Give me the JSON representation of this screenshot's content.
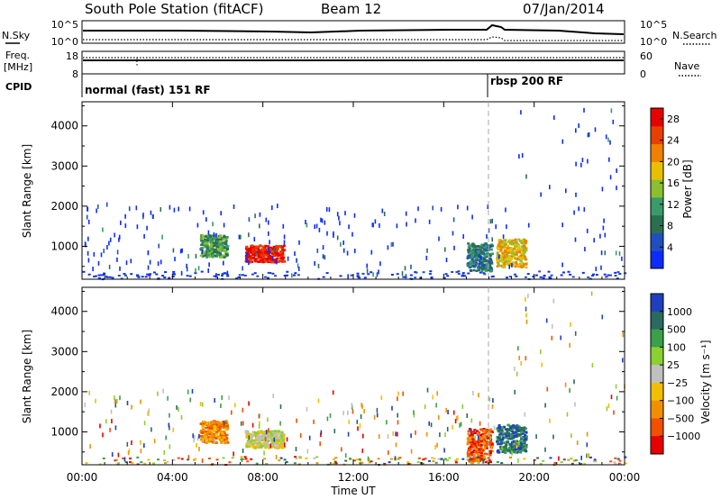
{
  "header": {
    "station": "South Pole Station (fitACF)",
    "beam": "Beam 12",
    "date": "07/Jan/2014"
  },
  "top_panels": {
    "nsky_label": "N.Sky",
    "nsky_ticks": [
      "10^5",
      "10^0"
    ],
    "nsearch_label": "N.Search",
    "freq_label_1": "Freq.",
    "freq_label_2": "[MHz]",
    "freq_ticks": [
      "18",
      "8"
    ],
    "nave_label": "Nave",
    "nave_ticks": [
      "60",
      "0"
    ],
    "cpid_label": "CPID",
    "cpid_segments": [
      {
        "start_hour": 0,
        "label": "normal (fast) 151 RF"
      },
      {
        "start_hour": 18,
        "label": "rbsp 200 RF"
      }
    ]
  },
  "chart_data": [
    {
      "type": "heatmap",
      "id": "power",
      "xlabel": "Time UT",
      "ylabel": "Slant Range [km]",
      "xlim": [
        0,
        24
      ],
      "ylim": [
        180,
        4600
      ],
      "x_ticks": [
        "00:00",
        "04:00",
        "08:00",
        "12:00",
        "16:00",
        "20:00",
        "00:00"
      ],
      "y_ticks": [
        1000,
        2000,
        3000,
        4000
      ],
      "colorbar": {
        "label": "Power [dB]",
        "ticks": [
          4,
          8,
          12,
          16,
          20,
          24,
          28
        ],
        "range": [
          0,
          30
        ],
        "colors": [
          "#0d2bff",
          "#1f4fbf",
          "#2a7050",
          "#3a9a6a",
          "#8ac030",
          "#e8c000",
          "#f08000",
          "#e84000",
          "#e80000"
        ]
      },
      "features": [
        {
          "t0": 5.2,
          "t1": 6.4,
          "r0": 750,
          "r1": 1300,
          "level": 3
        },
        {
          "t0": 7.2,
          "t1": 8.9,
          "r0": 620,
          "r1": 1050,
          "level": 8
        },
        {
          "t0": 17.0,
          "t1": 18.1,
          "r0": 400,
          "r1": 1100,
          "level": 2
        },
        {
          "t0": 18.3,
          "t1": 19.6,
          "r0": 500,
          "r1": 1200,
          "level": 5
        }
      ]
    },
    {
      "type": "heatmap",
      "id": "velocity",
      "xlabel": "Time UT",
      "ylabel": "Slant Range [km]",
      "xlim": [
        0,
        24
      ],
      "ylim": [
        180,
        4600
      ],
      "x_ticks": [
        "00:00",
        "04:00",
        "08:00",
        "12:00",
        "16:00",
        "20:00",
        "00:00"
      ],
      "y_ticks": [
        1000,
        2000,
        3000,
        4000
      ],
      "colorbar": {
        "label": "Velocity [m s⁻¹]",
        "ticks": [
          "1000",
          "500",
          "100",
          "25",
          "−25",
          "−100",
          "−500",
          "−1000"
        ],
        "colors": [
          "#1f3fbf",
          "#2a6a60",
          "#3aa04a",
          "#8ad030",
          "#c0c0c0",
          "#f0c000",
          "#f09000",
          "#f05000",
          "#e80000"
        ]
      },
      "features": [
        {
          "t0": 5.2,
          "t1": 6.4,
          "r0": 750,
          "r1": 1300,
          "level": 6
        },
        {
          "t0": 7.2,
          "t1": 8.9,
          "r0": 620,
          "r1": 1050,
          "level": 4
        },
        {
          "t0": 17.0,
          "t1": 18.1,
          "r0": 250,
          "r1": 1100,
          "level": 7
        },
        {
          "t0": 18.3,
          "t1": 19.6,
          "r0": 500,
          "r1": 1200,
          "level": 1
        }
      ]
    }
  ]
}
